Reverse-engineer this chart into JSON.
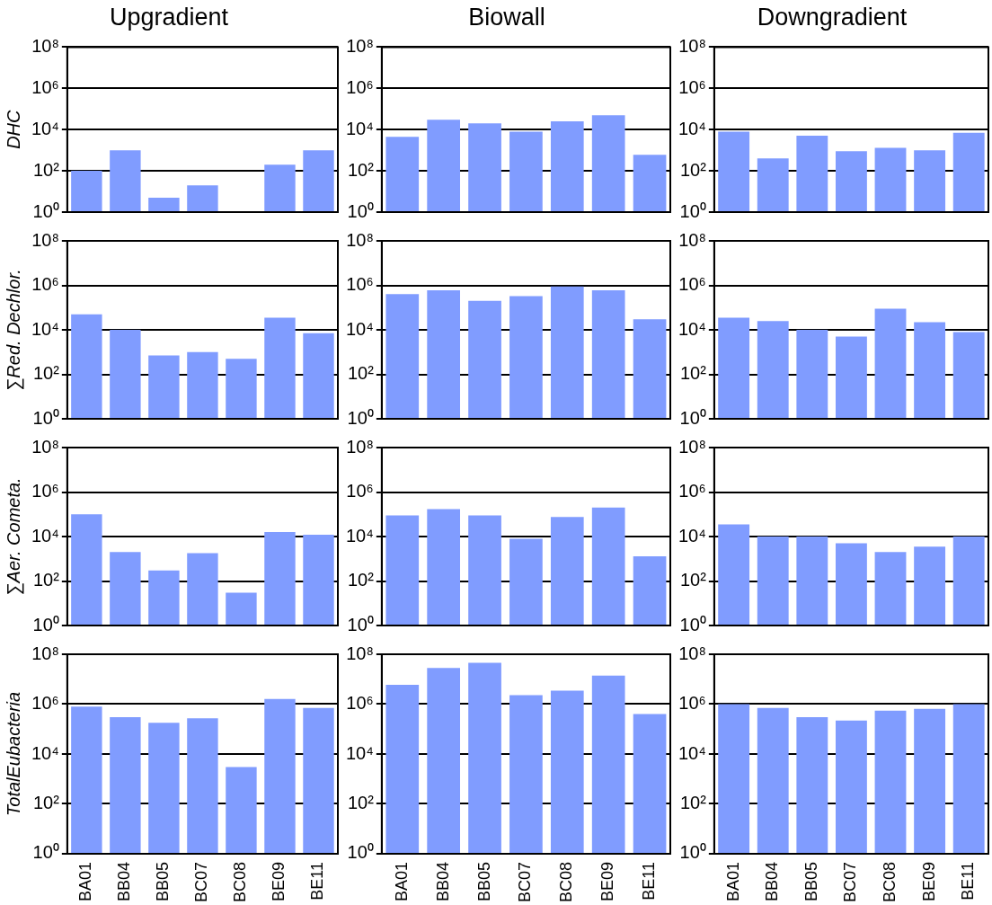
{
  "chart_data": [
    {
      "type": "bar",
      "title": "Upgradient",
      "ylabel": "DHC",
      "categories": [
        null,
        null,
        null,
        null,
        null,
        null,
        null
      ],
      "values": [
        100,
        1000,
        5,
        20,
        null,
        200,
        1000
      ],
      "color": "#809cff",
      "log": "y",
      "ylim": [
        1,
        100000000
      ],
      "yticks": [
        {
          "value": 1,
          "label": "10⁰"
        },
        {
          "value": 100,
          "label": "10²"
        },
        {
          "value": 10000,
          "label": "10⁴"
        },
        {
          "value": 1000000,
          "label": "10⁶"
        },
        {
          "value": 100000000,
          "label": "10⁸"
        }
      ],
      "grid": "y",
      "tick_labels": "y"
    },
    {
      "type": "bar",
      "title": "Biowall",
      "categories": [
        null,
        null,
        null,
        null,
        null,
        null,
        null
      ],
      "values": [
        4500,
        30000,
        20000,
        8000,
        25000,
        50000,
        600
      ],
      "color": "#809cff",
      "log": "y",
      "ylim": [
        1,
        100000000
      ],
      "yticks": [
        {
          "value": 1,
          "label": "10⁰"
        },
        {
          "value": 100,
          "label": "10²"
        },
        {
          "value": 10000,
          "label": "10⁴"
        },
        {
          "value": 1000000,
          "label": "10⁶"
        },
        {
          "value": 100000000,
          "label": "10⁸"
        }
      ],
      "grid": "y",
      "tick_labels": "y"
    },
    {
      "type": "bar",
      "title": "Downgradient",
      "categories": [
        null,
        null,
        null,
        null,
        null,
        null,
        null
      ],
      "values": [
        8000,
        400,
        5000,
        900,
        1300,
        1000,
        7000
      ],
      "color": "#809cff",
      "log": "y",
      "ylim": [
        1,
        100000000
      ],
      "yticks": [
        {
          "value": 1,
          "label": "10⁰"
        },
        {
          "value": 100,
          "label": "10²"
        },
        {
          "value": 10000,
          "label": "10⁴"
        },
        {
          "value": 1000000,
          "label": "10⁶"
        },
        {
          "value": 100000000,
          "label": "10⁸"
        }
      ],
      "grid": "y",
      "tick_labels": "y"
    },
    {
      "type": "bar",
      "ylabel": "∑Red. Dechlor.",
      "categories": [
        null,
        null,
        null,
        null,
        null,
        null,
        null
      ],
      "values": [
        50000,
        10000,
        700,
        1000,
        500,
        35000,
        7000
      ],
      "color": "#809cff",
      "log": "y",
      "ylim": [
        1,
        100000000
      ],
      "yticks": [
        {
          "value": 1,
          "label": "10⁰"
        },
        {
          "value": 100,
          "label": "10²"
        },
        {
          "value": 10000,
          "label": "10⁴"
        },
        {
          "value": 1000000,
          "label": "10⁶"
        },
        {
          "value": 100000000,
          "label": "10⁸"
        }
      ],
      "grid": "y",
      "tick_labels": "y"
    },
    {
      "type": "bar",
      "categories": [
        null,
        null,
        null,
        null,
        null,
        null,
        null
      ],
      "values": [
        400000,
        600000,
        200000,
        330000,
        900000,
        600000,
        30000
      ],
      "color": "#809cff",
      "log": "y",
      "ylim": [
        1,
        100000000
      ],
      "yticks": [
        {
          "value": 1,
          "label": "10⁰"
        },
        {
          "value": 100,
          "label": "10²"
        },
        {
          "value": 10000,
          "label": "10⁴"
        },
        {
          "value": 1000000,
          "label": "10⁶"
        },
        {
          "value": 100000000,
          "label": "10⁸"
        }
      ],
      "grid": "y",
      "tick_labels": "y"
    },
    {
      "type": "bar",
      "categories": [
        null,
        null,
        null,
        null,
        null,
        null,
        null
      ],
      "values": [
        35000,
        25000,
        10000,
        5000,
        90000,
        22000,
        8000
      ],
      "color": "#809cff",
      "log": "y",
      "ylim": [
        1,
        100000000
      ],
      "yticks": [
        {
          "value": 1,
          "label": "10⁰"
        },
        {
          "value": 100,
          "label": "10²"
        },
        {
          "value": 10000,
          "label": "10⁴"
        },
        {
          "value": 1000000,
          "label": "10⁶"
        },
        {
          "value": 100000000,
          "label": "10⁸"
        }
      ],
      "grid": "y",
      "tick_labels": "y"
    },
    {
      "type": "bar",
      "ylabel": "∑Aer. Cometa.",
      "categories": [
        null,
        null,
        null,
        null,
        null,
        null,
        null
      ],
      "values": [
        100000,
        2000,
        300,
        1800,
        30,
        16000,
        12000
      ],
      "color": "#809cff",
      "log": "y",
      "ylim": [
        1,
        100000000
      ],
      "yticks": [
        {
          "value": 1,
          "label": "10⁰"
        },
        {
          "value": 100,
          "label": "10²"
        },
        {
          "value": 10000,
          "label": "10⁴"
        },
        {
          "value": 1000000,
          "label": "10⁶"
        },
        {
          "value": 100000000,
          "label": "10⁸"
        }
      ],
      "grid": "y",
      "tick_labels": "y"
    },
    {
      "type": "bar",
      "categories": [
        null,
        null,
        null,
        null,
        null,
        null,
        null
      ],
      "values": [
        90000,
        170000,
        90000,
        8000,
        75000,
        200000,
        1300
      ],
      "color": "#809cff",
      "log": "y",
      "ylim": [
        1,
        100000000
      ],
      "yticks": [
        {
          "value": 1,
          "label": "10⁰"
        },
        {
          "value": 100,
          "label": "10²"
        },
        {
          "value": 10000,
          "label": "10⁴"
        },
        {
          "value": 1000000,
          "label": "10⁶"
        },
        {
          "value": 100000000,
          "label": "10⁸"
        }
      ],
      "grid": "y",
      "tick_labels": "y"
    },
    {
      "type": "bar",
      "categories": [
        null,
        null,
        null,
        null,
        null,
        null,
        null
      ],
      "values": [
        35000,
        10000,
        10000,
        5000,
        2000,
        3500,
        10000
      ],
      "color": "#809cff",
      "log": "y",
      "ylim": [
        1,
        100000000
      ],
      "yticks": [
        {
          "value": 1,
          "label": "10⁰"
        },
        {
          "value": 100,
          "label": "10²"
        },
        {
          "value": 10000,
          "label": "10⁴"
        },
        {
          "value": 1000000,
          "label": "10⁶"
        },
        {
          "value": 100000000,
          "label": "10⁸"
        }
      ],
      "grid": "y",
      "tick_labels": "y"
    },
    {
      "type": "bar",
      "ylabel": "TotalEubacteria",
      "categories": [
        "BA01",
        "BB04",
        "BB05",
        "BC07",
        "BC08",
        "BE09",
        "BE11"
      ],
      "values": [
        800000,
        300000,
        180000,
        270000,
        3000,
        1600000,
        700000
      ],
      "color": "#809cff",
      "log": "y",
      "ylim": [
        1,
        100000000
      ],
      "yticks": [
        {
          "value": 1,
          "label": "10⁰"
        },
        {
          "value": 100,
          "label": "10²"
        },
        {
          "value": 10000,
          "label": "10⁴"
        },
        {
          "value": 1000000,
          "label": "10⁶"
        },
        {
          "value": 100000000,
          "label": "10⁸"
        }
      ],
      "grid": "y"
    },
    {
      "type": "bar",
      "categories": [
        "BA01",
        "BB04",
        "BB05",
        "BC07",
        "BC08",
        "BE09",
        "BE11"
      ],
      "values": [
        6000000,
        28000000,
        45000000,
        2300000,
        3500000,
        14000000,
        400000
      ],
      "color": "#809cff",
      "log": "y",
      "ylim": [
        1,
        100000000
      ],
      "yticks": [
        {
          "value": 1,
          "label": "10⁰"
        },
        {
          "value": 100,
          "label": "10²"
        },
        {
          "value": 10000,
          "label": "10⁴"
        },
        {
          "value": 1000000,
          "label": "10⁶"
        },
        {
          "value": 100000000,
          "label": "10⁸"
        }
      ],
      "grid": "y"
    },
    {
      "type": "bar",
      "categories": [
        "BA01",
        "BB04",
        "BB05",
        "BC07",
        "BC08",
        "BE09",
        "BE11"
      ],
      "values": [
        1000000,
        700000,
        300000,
        220000,
        550000,
        650000,
        1000000
      ],
      "color": "#809cff",
      "log": "y",
      "ylim": [
        1,
        100000000
      ],
      "yticks": [
        {
          "value": 1,
          "label": "10⁰"
        },
        {
          "value": 100,
          "label": "10²"
        },
        {
          "value": 10000,
          "label": "10⁴"
        },
        {
          "value": 1000000,
          "label": "10⁶"
        },
        {
          "value": 100000000,
          "label": "10⁸"
        }
      ],
      "grid": "y"
    }
  ]
}
